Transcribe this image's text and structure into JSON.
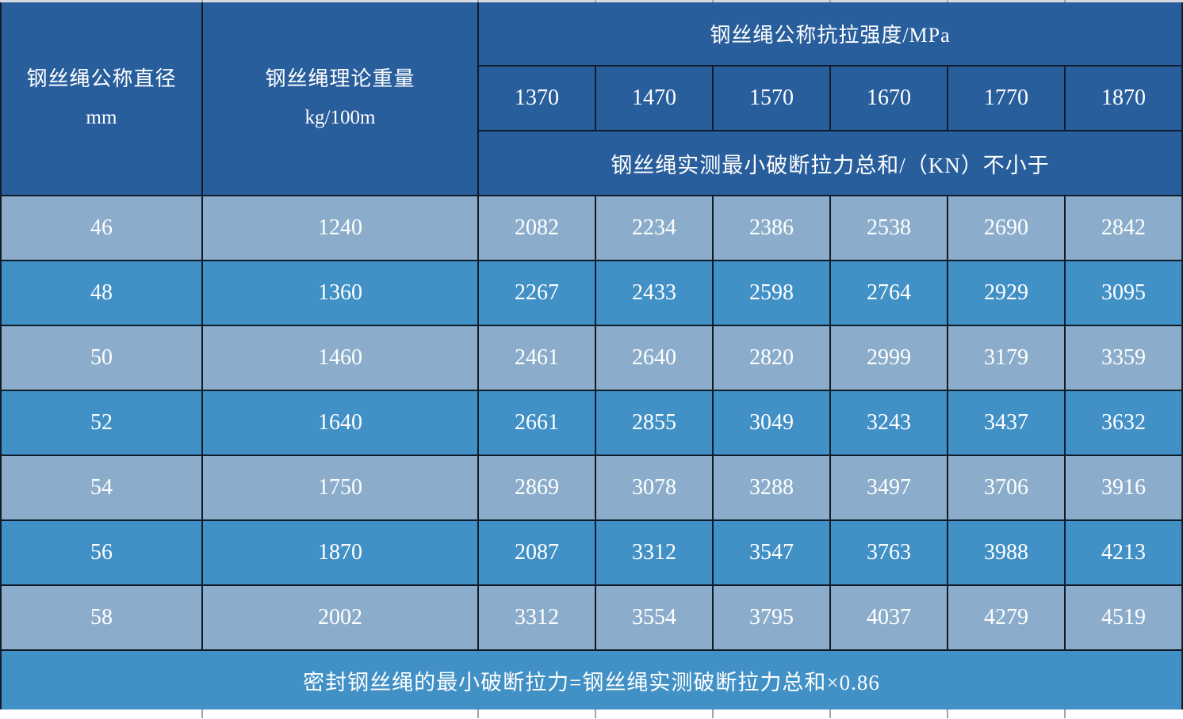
{
  "chart_data": {
    "type": "table",
    "header": {
      "diameter_title": "钢丝绳公称直径",
      "diameter_unit": "mm",
      "weight_title": "钢丝绳理论重量",
      "weight_unit": "kg/100m",
      "strength_group_title": "钢丝绳公称抗拉强度/MPa",
      "strength_values": [
        "1370",
        "1470",
        "1570",
        "1670",
        "1770",
        "1870"
      ],
      "breaking_force_note": "钢丝绳实测最小破断拉力总和/（KN）不小于"
    },
    "rows": [
      {
        "diameter": "46",
        "weight": "1240",
        "forces": [
          "2082",
          "2234",
          "2386",
          "2538",
          "2690",
          "2842"
        ]
      },
      {
        "diameter": "48",
        "weight": "1360",
        "forces": [
          "2267",
          "2433",
          "2598",
          "2764",
          "2929",
          "3095"
        ]
      },
      {
        "diameter": "50",
        "weight": "1460",
        "forces": [
          "2461",
          "2640",
          "2820",
          "2999",
          "3179",
          "3359"
        ]
      },
      {
        "diameter": "52",
        "weight": "1640",
        "forces": [
          "2661",
          "2855",
          "3049",
          "3243",
          "3437",
          "3632"
        ]
      },
      {
        "diameter": "54",
        "weight": "1750",
        "forces": [
          "2869",
          "3078",
          "3288",
          "3497",
          "3706",
          "3916"
        ]
      },
      {
        "diameter": "56",
        "weight": "1870",
        "forces": [
          "2087",
          "3312",
          "3547",
          "3763",
          "3988",
          "4213"
        ]
      },
      {
        "diameter": "58",
        "weight": "2002",
        "forces": [
          "3312",
          "3554",
          "3795",
          "4037",
          "4279",
          "4519"
        ]
      }
    ],
    "footer_note": "密封钢丝绳的最小破断拉力=钢丝绳实测破断拉力总和×0.86",
    "layout": {
      "grid": "on",
      "row_striping": "alternating light/dark blue"
    }
  },
  "colors": {
    "header_bg": "#295e9d",
    "row_light_bg": "#8badcb",
    "row_dark_bg": "#4190c6",
    "footer_bg": "#4190c6",
    "grid_line": "#101c2a",
    "text": "#ffffff",
    "edge_strip": "#d8dbde",
    "tick": "#9aa6b0"
  }
}
